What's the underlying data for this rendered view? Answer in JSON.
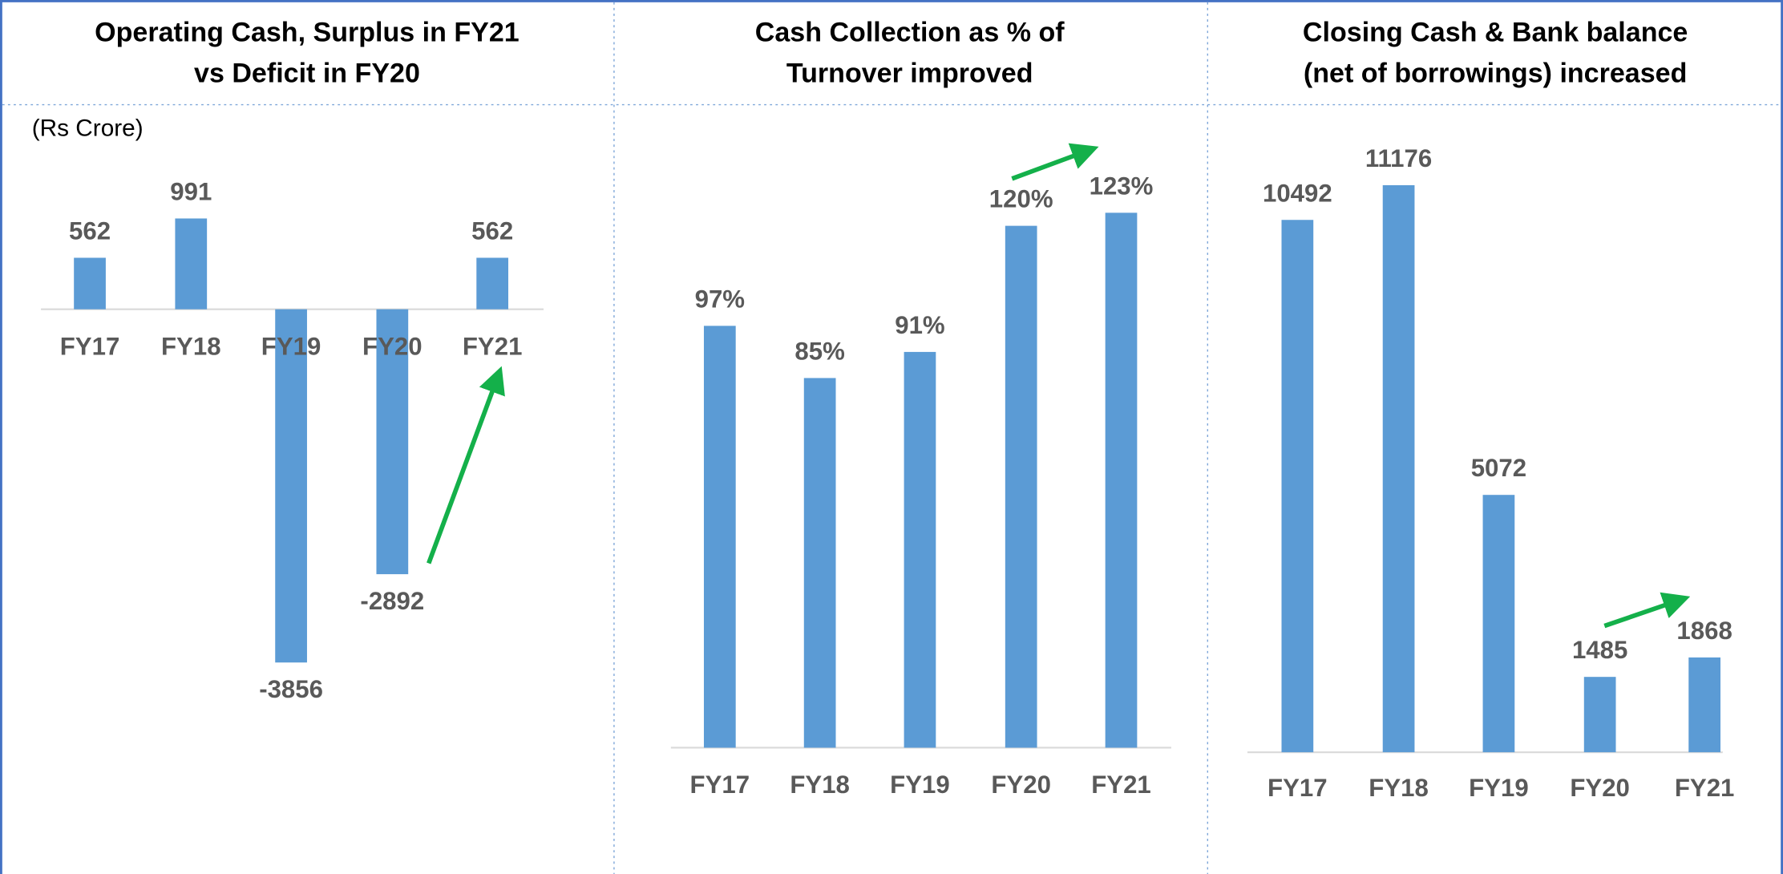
{
  "chart_data": [
    {
      "type": "bar",
      "title": [
        "Operating Cash, Surplus in FY21",
        "vs Deficit in FY20"
      ],
      "annotation": "(Rs Crore)",
      "categories": [
        "FY17",
        "FY18",
        "FY19",
        "FY20",
        "FY21"
      ],
      "values": [
        562,
        991,
        -3856,
        -2892,
        562
      ],
      "color": "#5b9bd5",
      "ylim": [
        -4500,
        1500
      ]
    },
    {
      "type": "bar",
      "title": [
        "Cash Collection as % of",
        "Turnover improved"
      ],
      "categories": [
        "FY17",
        "FY18",
        "FY19",
        "FY20",
        "FY21"
      ],
      "values": [
        97,
        85,
        91,
        120,
        123
      ],
      "value_labels": [
        "97%",
        "85%",
        "91%",
        "120%",
        "123%"
      ],
      "color": "#5b9bd5",
      "ylim": [
        0,
        140
      ]
    },
    {
      "type": "bar",
      "title": [
        "Closing Cash & Bank balance",
        "(net of borrowings) increased"
      ],
      "categories": [
        "FY17",
        "FY18",
        "FY19",
        "FY20",
        "FY21"
      ],
      "values": [
        10492,
        11176,
        5072,
        1485,
        1868
      ],
      "color": "#5b9bd5",
      "ylim": [
        0,
        12000
      ]
    }
  ]
}
